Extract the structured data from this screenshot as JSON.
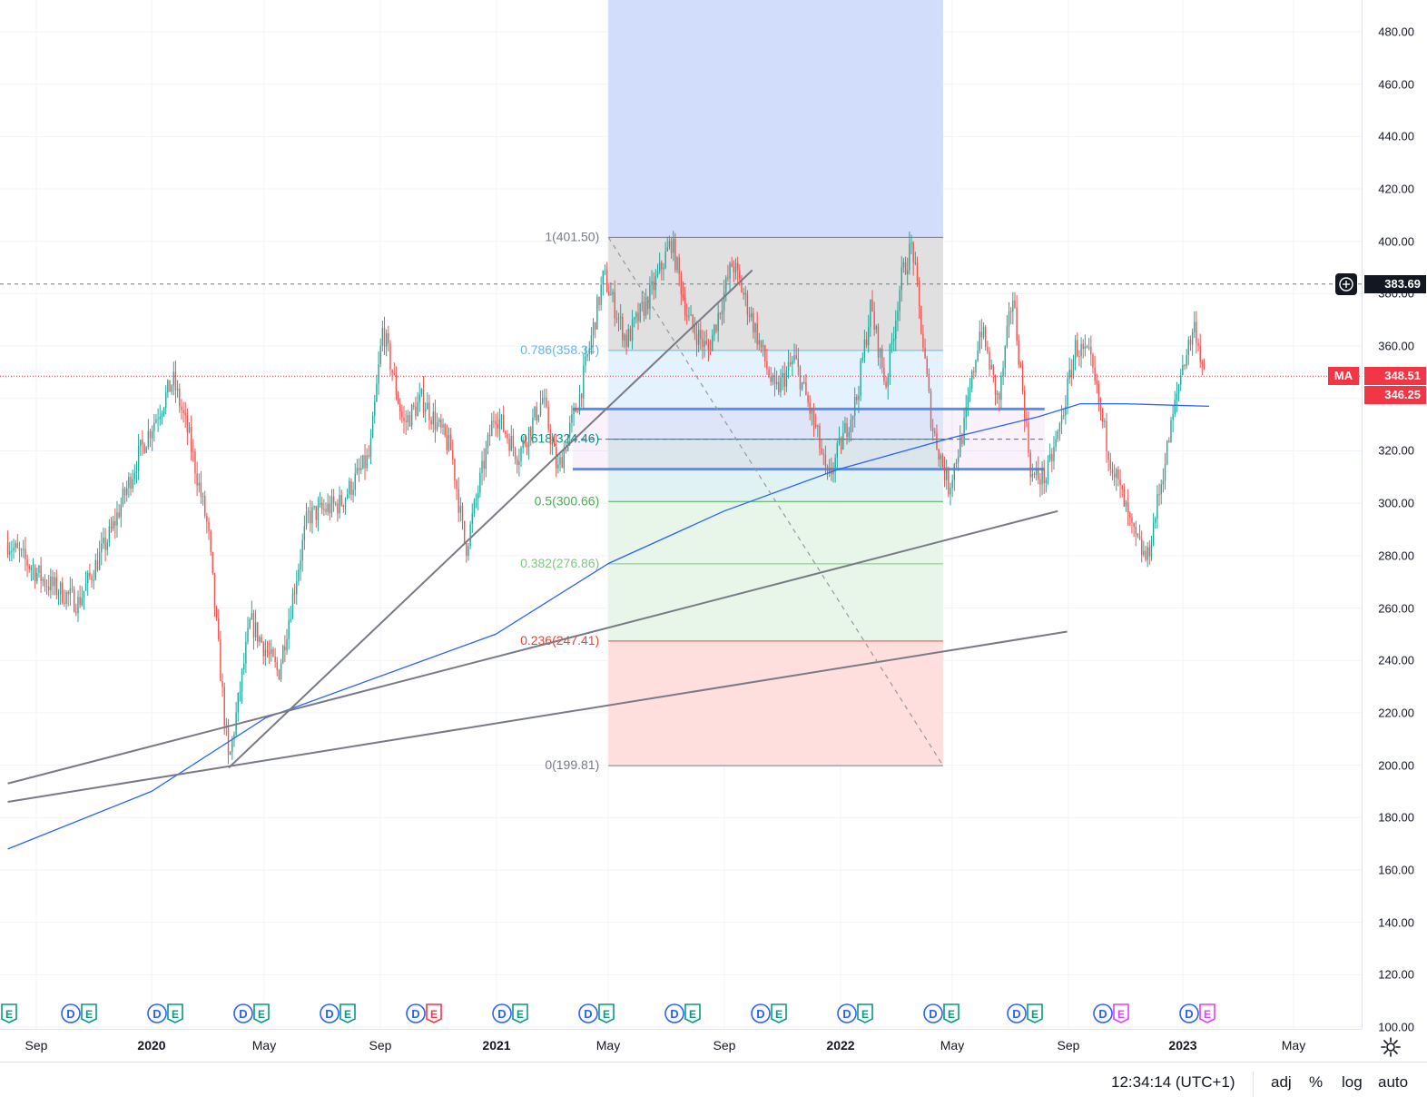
{
  "chart_data": {
    "type": "candlestick",
    "price_axis": {
      "ticks": [
        "480.00",
        "460.00",
        "440.00",
        "420.00",
        "400.00",
        "380.00",
        "360.00",
        "340.00",
        "320.00",
        "300.00",
        "280.00",
        "260.00",
        "240.00",
        "220.00",
        "200.00",
        "180.00",
        "160.00",
        "140.00",
        "120.00",
        "100.00"
      ],
      "ylim": [
        100,
        488
      ]
    },
    "time_axis": {
      "labels": [
        {
          "text": "Sep",
          "year": false
        },
        {
          "text": "2020",
          "year": true
        },
        {
          "text": "May",
          "year": false
        },
        {
          "text": "Sep",
          "year": false
        },
        {
          "text": "2021",
          "year": true
        },
        {
          "text": "May",
          "year": false
        },
        {
          "text": "Sep",
          "year": false
        },
        {
          "text": "2022",
          "year": true
        },
        {
          "text": "May",
          "year": false
        },
        {
          "text": "Sep",
          "year": false
        },
        {
          "text": "2023",
          "year": true
        },
        {
          "text": "May",
          "year": false
        }
      ]
    },
    "price_points": [
      [
        "2019-08-01",
        285
      ],
      [
        "2019-09-10",
        270
      ],
      [
        "2019-10-15",
        262
      ],
      [
        "2019-11-20",
        290
      ],
      [
        "2019-12-20",
        320
      ],
      [
        "2020-01-24",
        347
      ],
      [
        "2020-02-10",
        325
      ],
      [
        "2020-03-01",
        290
      ],
      [
        "2020-03-23",
        200
      ],
      [
        "2020-04-15",
        255
      ],
      [
        "2020-05-15",
        235
      ],
      [
        "2020-06-15",
        295
      ],
      [
        "2020-07-20",
        300
      ],
      [
        "2020-08-20",
        318
      ],
      [
        "2020-09-03",
        367
      ],
      [
        "2020-09-25",
        330
      ],
      [
        "2020-10-15",
        340
      ],
      [
        "2020-11-15",
        320
      ],
      [
        "2020-11-30",
        282
      ],
      [
        "2020-12-31",
        335
      ],
      [
        "2021-01-25",
        318
      ],
      [
        "2021-02-20",
        340
      ],
      [
        "2021-03-08",
        312
      ],
      [
        "2021-04-01",
        342
      ],
      [
        "2021-04-26",
        387
      ],
      [
        "2021-05-20",
        362
      ],
      [
        "2021-06-15",
        380
      ],
      [
        "2021-07-07",
        400
      ],
      [
        "2021-07-25",
        370
      ],
      [
        "2021-08-15",
        358
      ],
      [
        "2021-09-10",
        392
      ],
      [
        "2021-10-01",
        370
      ],
      [
        "2021-10-25",
        342
      ],
      [
        "2021-11-15",
        355
      ],
      [
        "2021-12-10",
        325
      ],
      [
        "2021-12-20",
        308
      ],
      [
        "2022-01-20",
        340
      ],
      [
        "2022-02-04",
        375
      ],
      [
        "2022-02-20",
        345
      ],
      [
        "2022-03-08",
        385
      ],
      [
        "2022-03-20",
        399
      ],
      [
        "2022-04-10",
        330
      ],
      [
        "2022-04-28",
        306
      ],
      [
        "2022-05-15",
        330
      ],
      [
        "2022-06-01",
        368
      ],
      [
        "2022-06-20",
        338
      ],
      [
        "2022-07-05",
        380
      ],
      [
        "2022-07-25",
        310
      ],
      [
        "2022-08-10",
        310
      ],
      [
        "2022-08-25",
        330
      ],
      [
        "2022-09-10",
        360
      ],
      [
        "2022-09-25",
        355
      ],
      [
        "2022-10-15",
        320
      ],
      [
        "2022-11-10",
        288
      ],
      [
        "2022-11-25",
        278
      ],
      [
        "2022-12-15",
        318
      ],
      [
        "2023-01-01",
        352
      ],
      [
        "2023-01-15",
        368
      ],
      [
        "2023-01-25",
        348
      ]
    ],
    "moving_average": {
      "label": "MA",
      "points": [
        [
          "2019-08-01",
          168
        ],
        [
          "2020-01-01",
          190
        ],
        [
          "2020-05-01",
          218
        ],
        [
          "2021-01-01",
          250
        ],
        [
          "2021-05-01",
          277
        ],
        [
          "2021-09-01",
          297
        ],
        [
          "2022-01-01",
          313
        ],
        [
          "2022-05-01",
          325
        ],
        [
          "2022-08-01",
          333
        ],
        [
          "2022-09-15",
          338
        ],
        [
          "2022-11-01",
          338
        ],
        [
          "2023-01-30",
          337
        ]
      ]
    },
    "current_price": {
      "value": "348.51",
      "ma_value": "346.25",
      "crosshair_value": "383.69",
      "line": 348.51,
      "crosshair": 383.69
    },
    "fibonacci": {
      "start": "2021-05-01",
      "end": "2022-04-22",
      "levels": [
        {
          "ratio": 1,
          "label": "1(401.50)",
          "price": 401.5,
          "color": "#787b86",
          "fill": "#e0e0e0"
        },
        {
          "ratio": 0.786,
          "label": "0.786(358.34)",
          "price": 358.34,
          "color": "#64b5f6",
          "fill": "#e3f2fd"
        },
        {
          "ratio": 0.618,
          "label": "0.618(324.46)",
          "price": 324.46,
          "color": "#009688",
          "fill": "#e0f2f1"
        },
        {
          "ratio": 0.5,
          "label": "0.5(300.66)",
          "price": 300.66,
          "color": "#4caf50",
          "fill": "#e8f5e9"
        },
        {
          "ratio": 0.382,
          "label": "0.382(276.86)",
          "price": 276.86,
          "color": "#81c784",
          "fill": "#e8f5e9"
        },
        {
          "ratio": 0.236,
          "label": "0.236(247.41)",
          "price": 247.41,
          "color": "#f44336",
          "fill": "#ffdede"
        },
        {
          "ratio": 0,
          "label": "0(199.81)",
          "price": 199.81,
          "color": "#787b86",
          "fill": ""
        }
      ],
      "extension_fill": "#d1ddfb",
      "extension_top": 488
    },
    "support_box": {
      "x1": "2021-03-24",
      "x2": "2022-08-08",
      "top": 336,
      "bottom": 313,
      "mid": 324.46
    },
    "trendlines": [
      {
        "x1": "2020-03-23",
        "y1": 199,
        "x2": "2021-10-01",
        "y2": 389
      },
      {
        "x1": "2019-08-01",
        "y1": 193,
        "x2": "2022-08-22",
        "y2": 297
      },
      {
        "x1": "2019-08-01",
        "y1": 186,
        "x2": "2022-09-01",
        "y2": 251
      },
      {
        "x1": "2021-05-01",
        "y1": 401.5,
        "x2": "2022-04-22",
        "y2": 199.81,
        "dashed": true
      }
    ],
    "events": [
      {
        "kind": "DE"
      },
      {
        "kind": "DE"
      },
      {
        "kind": "DE"
      },
      {
        "kind": "DE"
      },
      {
        "kind": "DE-red"
      },
      {
        "kind": "DE"
      },
      {
        "kind": "DE"
      },
      {
        "kind": "DE"
      },
      {
        "kind": "DE"
      },
      {
        "kind": "DE"
      },
      {
        "kind": "DE"
      },
      {
        "kind": "DE"
      },
      {
        "kind": "DE-future"
      }
    ]
  },
  "bottom_bar": {
    "time": "12:34:14 (UTC+1)",
    "adj": "adj",
    "percent": "%",
    "log": "log",
    "auto": "auto"
  }
}
